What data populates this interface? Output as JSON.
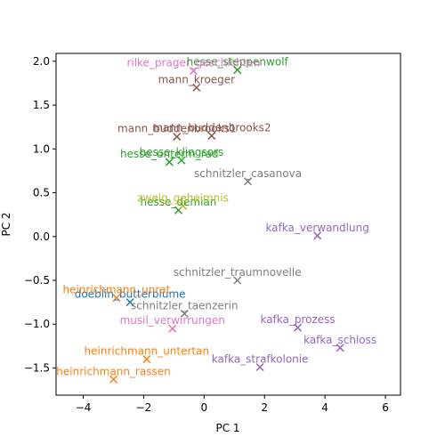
{
  "chart_data": {
    "type": "scatter",
    "xlabel": "PC  1",
    "ylabel": "PC  2",
    "xlim": [
      -4.9,
      6.5
    ],
    "ylim": [
      -1.81,
      2.09
    ],
    "xticks": [
      "−4",
      "−2",
      "0",
      "2",
      "4",
      "6"
    ],
    "xtick_values": [
      -4,
      -2,
      0,
      2,
      4,
      6
    ],
    "yticks": [
      "−1.5",
      "−1.0",
      "−0.5",
      "0.0",
      "0.5",
      "1.0",
      "1.5",
      "2.0"
    ],
    "ytick_values": [
      -1.5,
      -1.0,
      -0.5,
      0.0,
      0.5,
      1.0,
      1.5,
      2.0
    ],
    "grid": false,
    "marker": "x",
    "colors": {
      "doeblin": "#1f77b4",
      "heinrichmann": "#ff7f0e",
      "hesse": "#2ca02c",
      "kafka": "#9467bd",
      "mann": "#8c564b",
      "rilke": "#e377c2",
      "schnitzler": "#7f7f7f",
      "zweig": "#bcbd22"
    },
    "points": [
      {
        "label": "doeblin_butterblume",
        "group": "doeblin",
        "x": -2.45,
        "y": -0.75
      },
      {
        "label": "heinrichmann_unrat",
        "group": "heinrichmann",
        "x": -2.9,
        "y": -0.7
      },
      {
        "label": "heinrichmann_untertan",
        "group": "heinrichmann",
        "x": -1.9,
        "y": -1.4
      },
      {
        "label": "heinrichmann_rassen",
        "group": "heinrichmann",
        "x": -3.0,
        "y": -1.63
      },
      {
        "label": "hesse_steppenwolf",
        "group": "hesse",
        "x": 1.1,
        "y": 1.9
      },
      {
        "label": "hesse_klingsors",
        "group": "hesse",
        "x": -0.75,
        "y": 0.87
      },
      {
        "label": "hesse_unterm_rad",
        "group": "hesse",
        "x": -1.15,
        "y": 0.85
      },
      {
        "label": "hesse_demian",
        "group": "hesse",
        "x": -0.85,
        "y": 0.3
      },
      {
        "label": "kafka_verwandlung",
        "group": "kafka",
        "x": 3.75,
        "y": 0.01
      },
      {
        "label": "kafka_prozess",
        "group": "kafka",
        "x": 3.1,
        "y": -1.04
      },
      {
        "label": "kafka_schloss",
        "group": "kafka",
        "x": 4.5,
        "y": -1.27
      },
      {
        "label": "kafka_strafkolonie",
        "group": "kafka",
        "x": 1.85,
        "y": -1.49
      },
      {
        "label": "mann_kroeger",
        "group": "mann",
        "x": -0.25,
        "y": 1.7
      },
      {
        "label": "mann_buddenbrooks1",
        "group": "mann",
        "x": -0.9,
        "y": 1.14
      },
      {
        "label": "mann_buddenbrooks2",
        "group": "mann",
        "x": 0.25,
        "y": 1.15
      },
      {
        "label": "rilke_prager_geschichten",
        "group": "rilke",
        "x": -0.35,
        "y": 1.89
      },
      {
        "label": "musil_verwirrungen",
        "group": "rilke",
        "x": -1.05,
        "y": -1.05
      },
      {
        "label": "schnitzler_casanova",
        "group": "schnitzler",
        "x": 1.45,
        "y": 0.63
      },
      {
        "label": "schnitzler_traumnovelle",
        "group": "schnitzler",
        "x": 1.1,
        "y": -0.5
      },
      {
        "label": "schnitzler_taenzerin",
        "group": "schnitzler",
        "x": -0.65,
        "y": -0.88
      },
      {
        "label": "zweig_geheimnis",
        "group": "zweig",
        "x": -0.7,
        "y": 0.35
      }
    ]
  }
}
